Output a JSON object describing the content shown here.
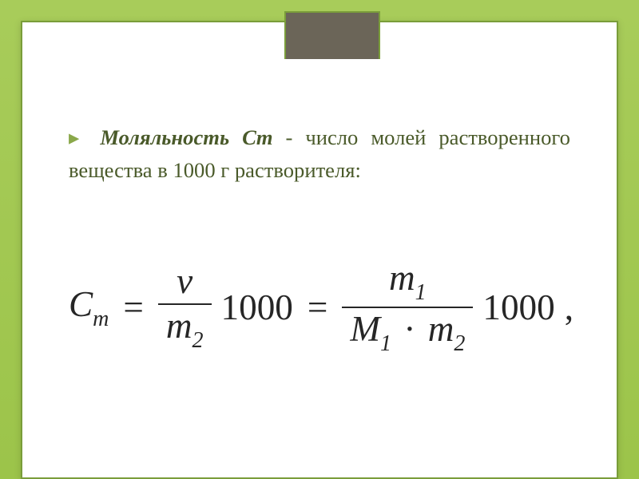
{
  "frame": {
    "gradient_top": "#a8cc5a",
    "gradient_bottom": "#9cc44a",
    "border_color": "#7a9d3a",
    "tab_bg": "#6b6558",
    "panel_bg": "#ffffff"
  },
  "definition": {
    "bullet": "▸",
    "term": "Моляльность",
    "symbol": "Cm",
    "rest_1": " - число молей растворенного вещества в ",
    "thousand": "1000",
    "rest_2": " г растворителя:",
    "font_size_pt": 20,
    "text_color": "#4a5a2a"
  },
  "formula": {
    "font_size_pt": 34,
    "text_color": "#262626",
    "lhs_base": "C",
    "lhs_sub": "m",
    "eq": "=",
    "frac1_num": "ν",
    "frac1_den_base": "m",
    "frac1_den_sub": "2",
    "k1": "1000",
    "frac2_num_base": "m",
    "frac2_num_sub": "1",
    "frac2_den_M": "M",
    "frac2_den_M_sub": "1",
    "dot": "·",
    "frac2_den_m": "m",
    "frac2_den_m_sub": "2",
    "k2": "1000",
    "tail": ","
  }
}
